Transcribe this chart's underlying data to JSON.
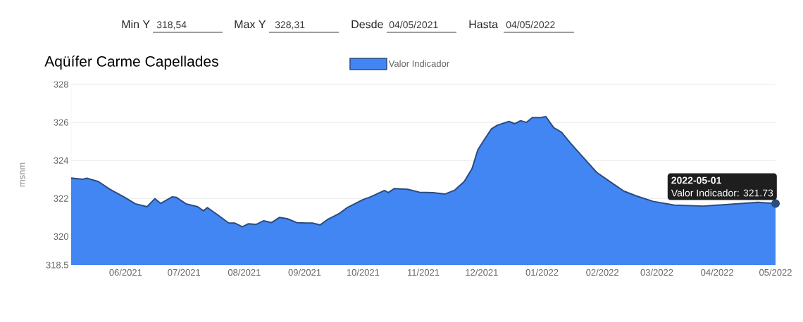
{
  "chart_data": {
    "type": "area",
    "title": "Aqüífer Carme Capellades",
    "ylabel": "msnm",
    "x": [
      "2021-05-04",
      "2021-05-10",
      "2021-05-12",
      "2021-05-18",
      "2021-05-24",
      "2021-05-31",
      "2021-06-06",
      "2021-06-12",
      "2021-06-16",
      "2021-06-19",
      "2021-06-25",
      "2021-06-27",
      "2021-07-02",
      "2021-07-08",
      "2021-07-11",
      "2021-07-13",
      "2021-07-18",
      "2021-07-24",
      "2021-07-27",
      "2021-07-31",
      "2021-08-03",
      "2021-08-07",
      "2021-08-11",
      "2021-08-15",
      "2021-08-19",
      "2021-08-23",
      "2021-08-28",
      "2021-09-02",
      "2021-09-05",
      "2021-09-09",
      "2021-09-13",
      "2021-09-19",
      "2021-09-23",
      "2021-10-01",
      "2021-10-05",
      "2021-10-12",
      "2021-10-14",
      "2021-10-17",
      "2021-10-24",
      "2021-10-30",
      "2021-11-06",
      "2021-11-12",
      "2021-11-17",
      "2021-11-22",
      "2021-11-26",
      "2021-11-29",
      "2021-12-02",
      "2021-12-06",
      "2021-12-09",
      "2021-12-15",
      "2021-12-18",
      "2021-12-21",
      "2021-12-24",
      "2021-12-27",
      "2021-12-31",
      "2022-01-03",
      "2022-01-07",
      "2022-01-09",
      "2022-01-11",
      "2022-01-16",
      "2022-01-22",
      "2022-01-29",
      "2022-02-04",
      "2022-02-12",
      "2022-02-18",
      "2022-02-27",
      "2022-03-10",
      "2022-03-25",
      "2022-04-08",
      "2022-04-22",
      "2022-05-01"
    ],
    "series": [
      {
        "name": "Valor Indicador",
        "color": "#4286f4",
        "values": [
          323.07,
          323.01,
          323.07,
          322.89,
          322.48,
          322.09,
          321.72,
          321.57,
          321.99,
          321.74,
          322.09,
          322.06,
          321.72,
          321.57,
          321.35,
          321.52,
          321.16,
          320.71,
          320.71,
          320.51,
          320.67,
          320.63,
          320.83,
          320.73,
          321.0,
          320.94,
          320.73,
          320.71,
          320.71,
          320.61,
          320.91,
          321.22,
          321.53,
          321.94,
          322.09,
          322.42,
          322.31,
          322.52,
          322.48,
          322.33,
          322.31,
          322.23,
          322.43,
          322.89,
          323.56,
          324.55,
          325.04,
          325.66,
          325.85,
          326.05,
          325.93,
          326.09,
          326.0,
          326.25,
          326.25,
          326.3,
          325.72,
          325.6,
          325.48,
          324.86,
          324.18,
          323.38,
          322.95,
          322.39,
          322.15,
          321.85,
          321.65,
          321.6,
          321.7,
          321.8,
          321.73
        ]
      }
    ],
    "xlim": [
      "2021-05-04",
      "2022-05-01"
    ],
    "xticks": [
      {
        "value": "2021-06-01",
        "label": "06/2021"
      },
      {
        "value": "2021-07-01",
        "label": "07/2021"
      },
      {
        "value": "2021-08-01",
        "label": "08/2021"
      },
      {
        "value": "2021-09-01",
        "label": "09/2021"
      },
      {
        "value": "2021-10-01",
        "label": "10/2021"
      },
      {
        "value": "2021-11-01",
        "label": "11/2021"
      },
      {
        "value": "2021-12-01",
        "label": "12/2021"
      },
      {
        "value": "2022-01-01",
        "label": "01/2022"
      },
      {
        "value": "2022-02-01",
        "label": "02/2022"
      },
      {
        "value": "2022-03-01",
        "label": "03/2022"
      },
      {
        "value": "2022-04-01",
        "label": "04/2022"
      },
      {
        "value": "2022-05-01",
        "label": "05/2022"
      }
    ],
    "ylim": [
      318.5,
      328
    ],
    "yticks": [
      318.5,
      320,
      322,
      324,
      326,
      328
    ],
    "grid": "y",
    "legend": "top",
    "marker": "none",
    "annotations": [
      "Min Y",
      "318,54",
      "Max Y",
      "328,31",
      "Desde",
      "04/05/2021",
      "Hasta",
      "04/05/2022",
      "2022-05-01",
      {
        "text": "Valor Indicador: 321.73",
        "x": "2022-05-01",
        "y": 321.73
      }
    ]
  }
}
